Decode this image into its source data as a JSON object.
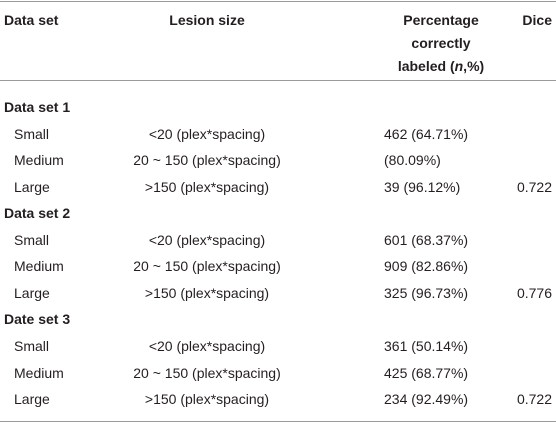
{
  "table": {
    "header": [
      "Data set",
      "Lesion size",
      [
        "Percentage",
        "correctly",
        [
          "labeled (",
          "n",
          ",%)"
        ]
      ],
      "Dice"
    ],
    "groups": [
      {
        "name": "Data set 1",
        "rows": [
          {
            "label": "Small",
            "size": "<20 (plex*spacing)",
            "percent": "462 (64.71%)"
          },
          {
            "label": "Medium",
            "size": "20 ~ 150 (plex*spacing)",
            "percent": "(80.09%)"
          },
          {
            "label": "Large",
            "size": ">150 (plex*spacing)",
            "percent": "39 (96.12%)",
            "dice": "0.722"
          }
        ]
      },
      {
        "name": "Data set 2",
        "rows": [
          {
            "label": "Small",
            "size": "<20 (plex*spacing)",
            "percent": "601 (68.37%)"
          },
          {
            "label": "Medium",
            "size": "20 ~ 150 (plex*spacing)",
            "percent": "909 (82.86%)"
          },
          {
            "label": "Large",
            "size": ">150 (plex*spacing)",
            "percent": "325 (96.73%)",
            "dice": "0.776"
          }
        ]
      },
      {
        "name": "Date set 3",
        "rows": [
          {
            "label": "Small",
            "size": "<20 (plex*spacing)",
            "percent": "361 (50.14%)"
          },
          {
            "label": "Medium",
            "size": "20 ~ 150 (plex*spacing)",
            "percent": "425 (68.77%)"
          },
          {
            "label": "Large",
            "size": ">150 (plex*spacing)",
            "percent": "234 (92.49%)",
            "dice": "0.722"
          }
        ]
      }
    ]
  }
}
